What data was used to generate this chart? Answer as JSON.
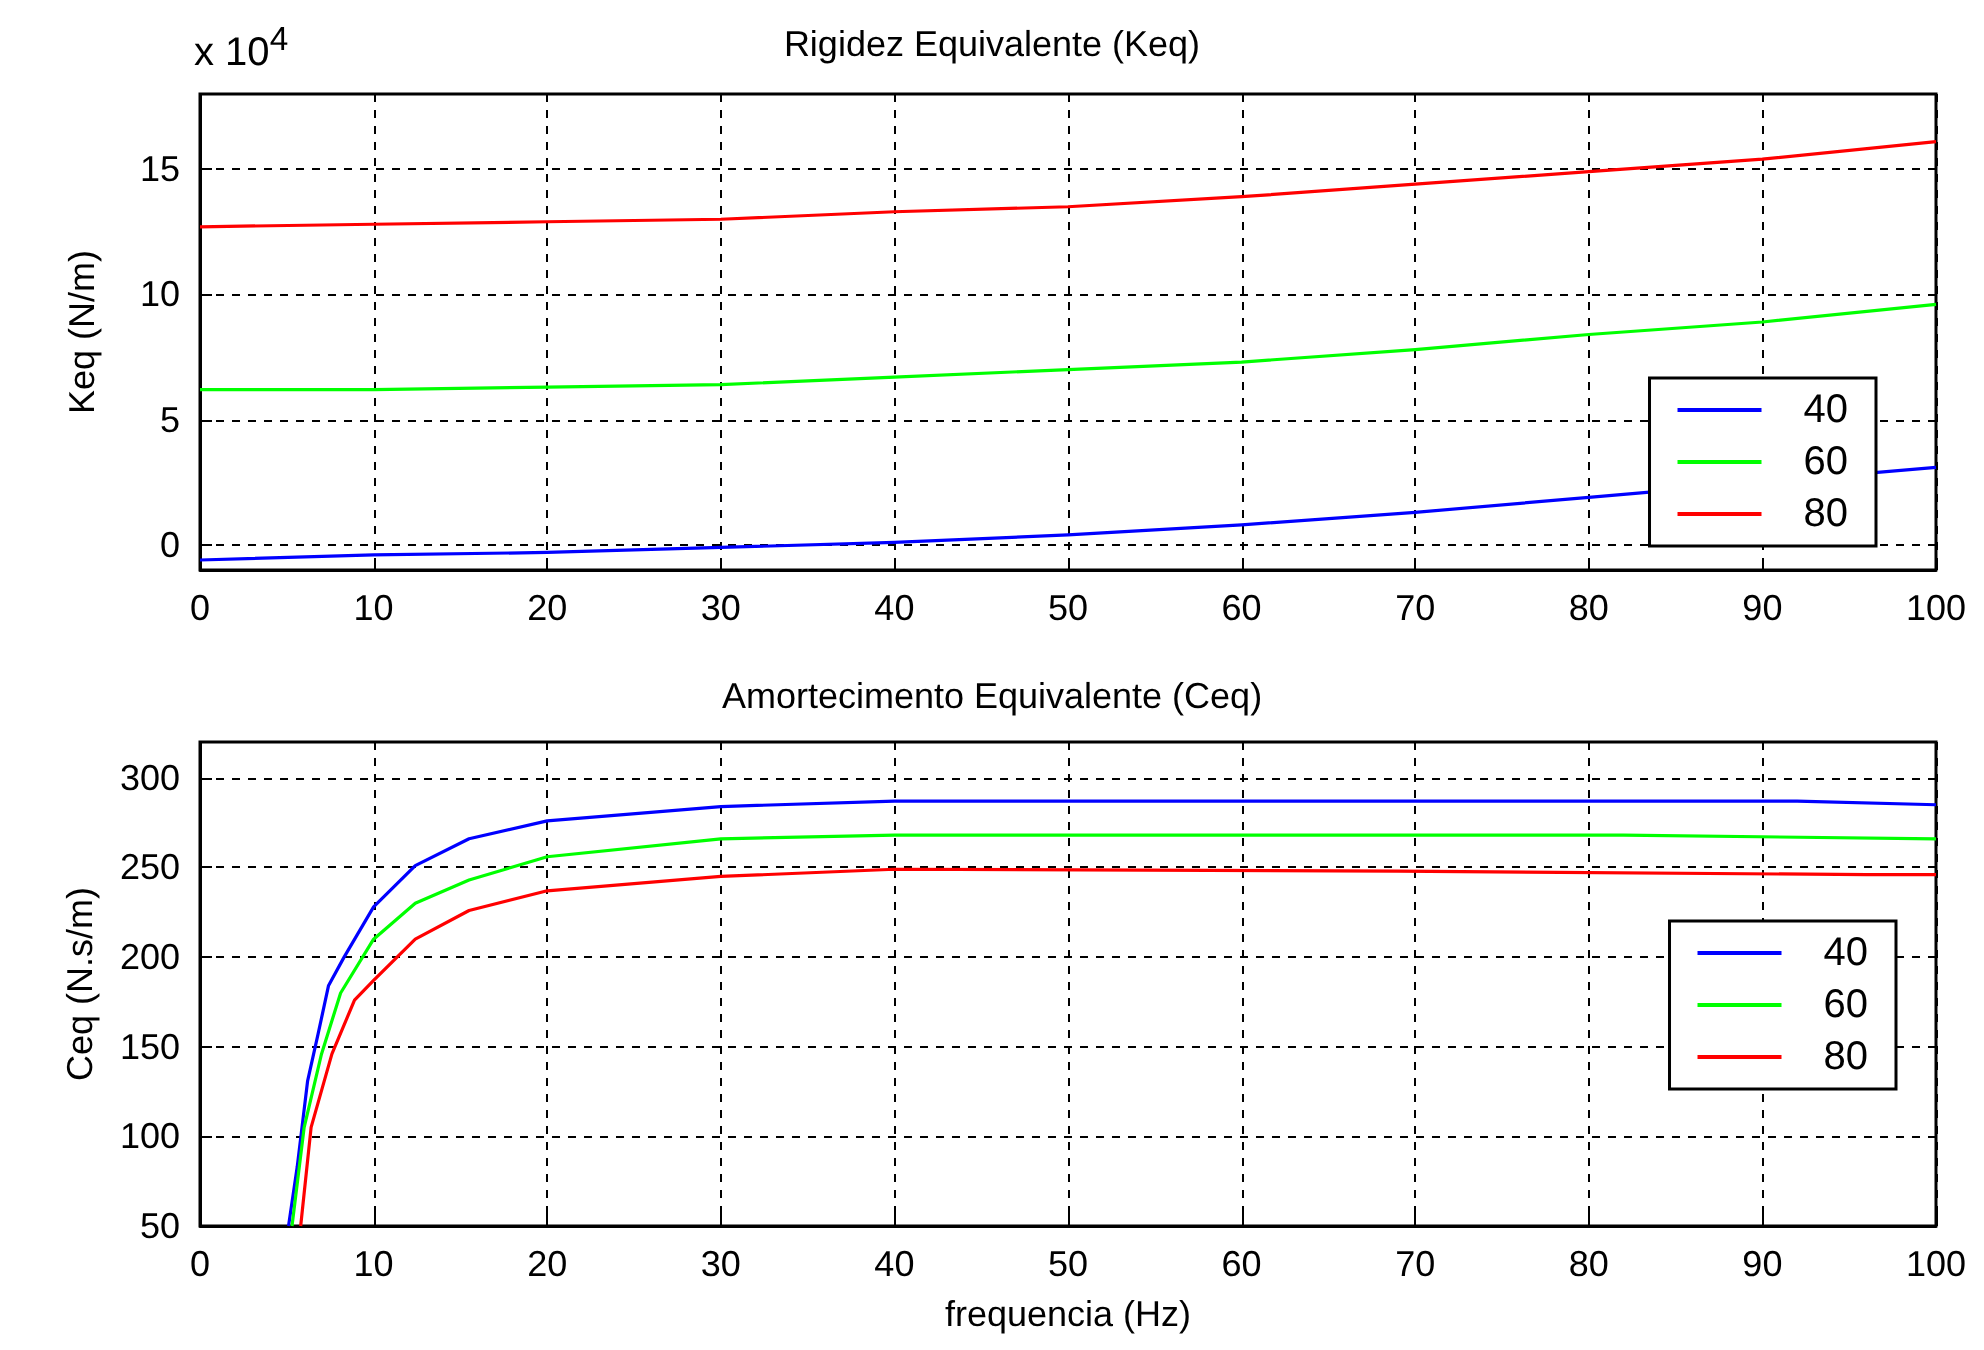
{
  "chart_data": [
    {
      "type": "line",
      "title": "Rigidez Equivalente (Keq)",
      "ylabel": "Keq (N/m)",
      "annotations": [
        "x 10$^{4}$"
      ],
      "xlim": [
        0,
        100
      ],
      "xticks": [
        0,
        10,
        20,
        30,
        40,
        50,
        60,
        70,
        80,
        90,
        100
      ],
      "ylim": [
        -1,
        18
      ],
      "yticks": [
        0,
        5,
        10,
        15
      ],
      "grid": true,
      "legend": "bottom right",
      "marker": "none",
      "line_style": "solid",
      "x": [
        0,
        10,
        20,
        30,
        40,
        50,
        60,
        70,
        80,
        90,
        100
      ],
      "series": [
        {
          "name": "40",
          "color": "#0000ff",
          "x": [
            0,
            10,
            20,
            30,
            40,
            50,
            60,
            70,
            80,
            100
          ],
          "values": [
            -0.6,
            -0.4,
            -0.3,
            -0.1,
            0.1,
            0.4,
            0.8,
            1.3,
            1.9,
            3.1
          ]
        },
        {
          "name": "60",
          "color": "#00ff00",
          "values": [
            6.2,
            6.2,
            6.3,
            6.4,
            6.7,
            7.0,
            7.3,
            7.8,
            8.4,
            8.9,
            9.6
          ]
        },
        {
          "name": "80",
          "color": "#ff0000",
          "values": [
            12.7,
            12.8,
            12.9,
            13.0,
            13.3,
            13.5,
            13.9,
            14.4,
            14.9,
            15.4,
            16.1
          ]
        }
      ]
    },
    {
      "type": "line",
      "title": "Amortecimento Equivalente (Ceq)",
      "xlabel": "frequencia (Hz)",
      "ylabel": "Ceq (N.s/m)",
      "xlim": [
        0,
        100
      ],
      "xticks": [
        0,
        10,
        20,
        30,
        40,
        50,
        60,
        70,
        80,
        90,
        100
      ],
      "ylim": [
        50,
        320
      ],
      "yticks": [
        50,
        100,
        150,
        200,
        250,
        300
      ],
      "grid": true,
      "legend": "right",
      "marker": "none",
      "line_style": "solid",
      "series": [
        {
          "name": "40",
          "color": "#0000ff",
          "x": [
            5.1,
            5.6,
            6.2,
            6.8,
            7.4,
            8.3,
            10,
            12.4,
            15.5,
            20,
            30,
            40,
            92,
            100
          ],
          "values": [
            50,
            83,
            131,
            157,
            184,
            200,
            228,
            251,
            266,
            276,
            284,
            287,
            287,
            285
          ]
        },
        {
          "name": "60",
          "color": "#00ff00",
          "x": [
            5.3,
            6.0,
            7.0,
            8.1,
            10,
            12.4,
            15.5,
            20,
            30,
            40,
            82,
            100
          ],
          "values": [
            50,
            105,
            146,
            180,
            210,
            230,
            243,
            256,
            266,
            268,
            268,
            266
          ]
        },
        {
          "name": "80",
          "color": "#ff0000",
          "x": [
            5.8,
            6.4,
            7.6,
            8.9,
            10,
            12.4,
            15.5,
            20,
            30,
            40,
            69,
            96,
            100
          ],
          "values": [
            50,
            105,
            146,
            176,
            187,
            210,
            226,
            237,
            245,
            249,
            248,
            246,
            246
          ]
        }
      ]
    }
  ]
}
